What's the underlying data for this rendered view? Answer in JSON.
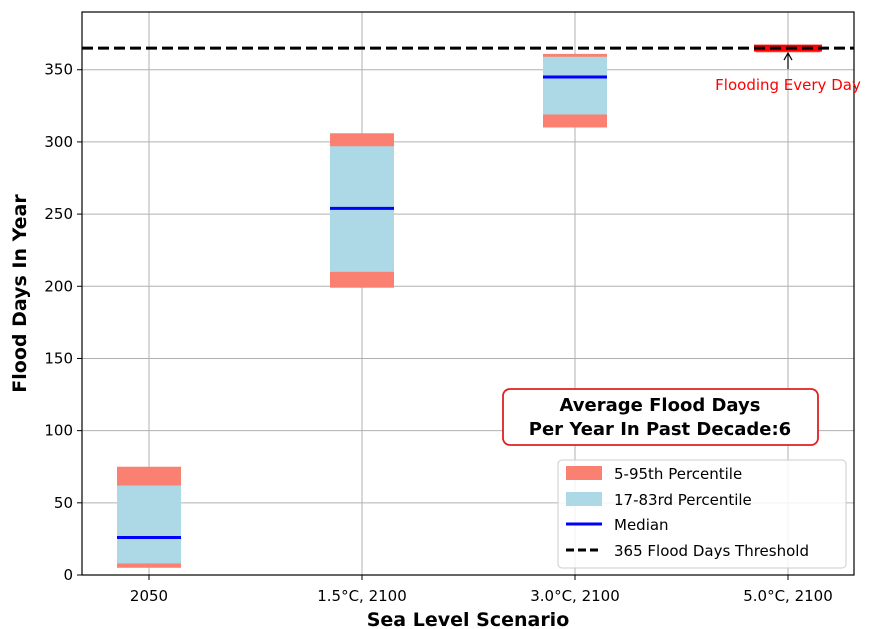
{
  "chart_data": {
    "type": "bar",
    "xlabel": "Sea Level Scenario",
    "ylabel": "Flood Days In Year",
    "categories": [
      "2050",
      "1.5°C, 2100",
      "3.0°C, 2100",
      "5.0°C, 2100"
    ],
    "ylim": [
      0,
      390
    ],
    "yticks": [
      0,
      50,
      100,
      150,
      200,
      250,
      300,
      350
    ],
    "grid": true,
    "series": [
      {
        "name": "5-95th Percentile",
        "color": "#fa8072",
        "low": [
          5,
          199,
          310,
          362
        ],
        "high": [
          75,
          306,
          361,
          367
        ]
      },
      {
        "name": "17-83rd Percentile",
        "color": "#add8e6",
        "low": [
          8,
          210,
          319,
          365
        ],
        "high": [
          62,
          297,
          359,
          365
        ]
      },
      {
        "name": "Median",
        "color": "#0000ff",
        "values": [
          26,
          254,
          345,
          365
        ]
      }
    ],
    "threshold": {
      "name": "365 Flood Days Threshold",
      "value": 365,
      "color": "#000000"
    },
    "annotation": {
      "text": "Flooding Every Day",
      "color": "#ff0000",
      "target_category": 3,
      "target_value": 365,
      "text_value": 338
    },
    "info_box": {
      "line1": "Average Flood Days",
      "line2": "Per Year In Past Decade:6",
      "border_color": "#e02020"
    },
    "legend_position": "lower-right"
  }
}
